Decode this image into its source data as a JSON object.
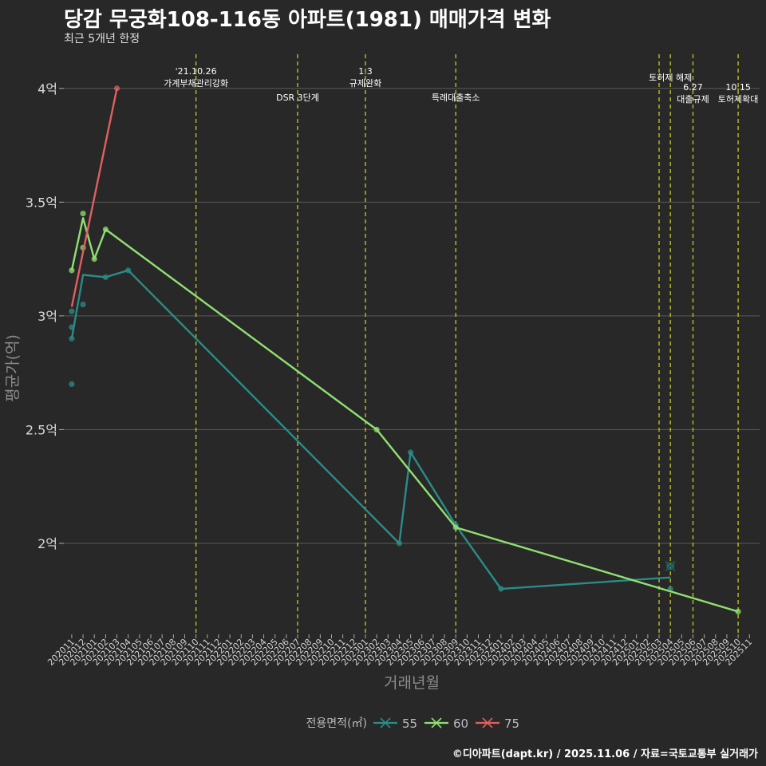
{
  "header": {
    "title": "당감 무궁화108-116동 아파트(1981) 매매가격 변화",
    "subtitle": "최근 5개년 한정"
  },
  "footer": {
    "caption": "©디아파트(dapt.kr) / 2025.11.06 / 자료=국토교통부 실거래가"
  },
  "colors": {
    "background": "#282828",
    "grid": "#5a5a5a",
    "vline": "#c8c820",
    "series_55": "#2a8c88",
    "series_60": "#90e070",
    "series_75": "#e06060"
  },
  "chart_data": {
    "type": "line",
    "title": "당감 무궁화108-116동 아파트(1981) 매매가격 변화",
    "xlabel": "거래년월",
    "ylabel": "평균가(억)",
    "ylim": [
      1.6,
      4.15
    ],
    "yticks": [
      2,
      2.5,
      3,
      3.5,
      4
    ],
    "ytick_labels": [
      "2억",
      "2.5억",
      "3억",
      "3.5억",
      "4억"
    ],
    "x_months": [
      "202011",
      "202012",
      "202101",
      "202102",
      "202103",
      "202104",
      "202105",
      "202106",
      "202107",
      "202108",
      "202109",
      "202110",
      "202111",
      "202112",
      "202201",
      "202202",
      "202203",
      "202204",
      "202205",
      "202206",
      "202207",
      "202208",
      "202209",
      "202210",
      "202211",
      "202212",
      "202301",
      "202302",
      "202303",
      "202304",
      "202305",
      "202306",
      "202307",
      "202308",
      "202309",
      "202310",
      "202311",
      "202312",
      "202401",
      "202402",
      "202403",
      "202404",
      "202405",
      "202406",
      "202407",
      "202408",
      "202409",
      "202410",
      "202411",
      "202412",
      "202501",
      "202502",
      "202503",
      "202504",
      "202505",
      "202506",
      "202507",
      "202508",
      "202509",
      "202510",
      "202511"
    ],
    "legend_title": "전용면적(㎡)",
    "legend_position": "bottom",
    "series": [
      {
        "name": "55",
        "color": "#2a8c88",
        "line": [
          [
            "202011",
            2.9
          ],
          [
            "202012",
            3.18
          ],
          [
            "202102",
            3.17
          ],
          [
            "202104",
            3.2
          ],
          [
            "202304",
            2.0
          ],
          [
            "202305",
            2.4
          ],
          [
            "202309",
            2.08
          ],
          [
            "202401",
            1.8
          ],
          [
            "202504",
            1.85
          ]
        ],
        "points": [
          [
            "202011",
            2.7
          ],
          [
            "202011",
            2.9
          ],
          [
            "202011",
            2.95
          ],
          [
            "202011",
            3.02
          ],
          [
            "202012",
            3.05
          ],
          [
            "202102",
            3.17
          ],
          [
            "202104",
            3.2
          ],
          [
            "202304",
            2.0
          ],
          [
            "202305",
            2.4
          ],
          [
            "202309",
            2.08
          ],
          [
            "202401",
            1.8
          ],
          [
            "202504",
            1.8
          ]
        ],
        "cross_points": [
          [
            "202504",
            1.9
          ]
        ]
      },
      {
        "name": "60",
        "color": "#90e070",
        "line": [
          [
            "202011",
            3.2
          ],
          [
            "202012",
            3.43
          ],
          [
            "202101",
            3.25
          ],
          [
            "202102",
            3.38
          ],
          [
            "202302",
            2.5
          ],
          [
            "202309",
            2.07
          ],
          [
            "202510",
            1.7
          ]
        ],
        "points": [
          [
            "202011",
            3.2
          ],
          [
            "202012",
            3.45
          ],
          [
            "202012",
            3.3
          ],
          [
            "202101",
            3.25
          ],
          [
            "202102",
            3.38
          ],
          [
            "202302",
            2.5
          ],
          [
            "202309",
            2.07
          ],
          [
            "202510",
            1.7
          ]
        ],
        "cross_points": []
      },
      {
        "name": "75",
        "color": "#e06060",
        "line": [
          [
            "202011",
            3.04
          ],
          [
            "202103",
            4.0
          ]
        ],
        "points": [
          [
            "202103",
            4.0
          ]
        ],
        "cross_points": []
      }
    ],
    "events": [
      {
        "month": "202110",
        "label": "'21.10.26\n가계부채관리강화",
        "row": 0
      },
      {
        "month": "202207",
        "label": "DSR 3단계",
        "row": 2
      },
      {
        "month": "202301",
        "label": "1.3\n규제완화",
        "row": 0
      },
      {
        "month": "202309",
        "label": "특례대출축소",
        "row": 2
      },
      {
        "month": "202503",
        "label": "",
        "row": 1
      },
      {
        "month": "202504",
        "label": "토허제 해제",
        "row": 1
      },
      {
        "month": "202506",
        "label": "6.27\n대출규제",
        "row": 3
      },
      {
        "month": "202510",
        "label": "10.15\n토허제확대",
        "row": 3
      }
    ]
  }
}
